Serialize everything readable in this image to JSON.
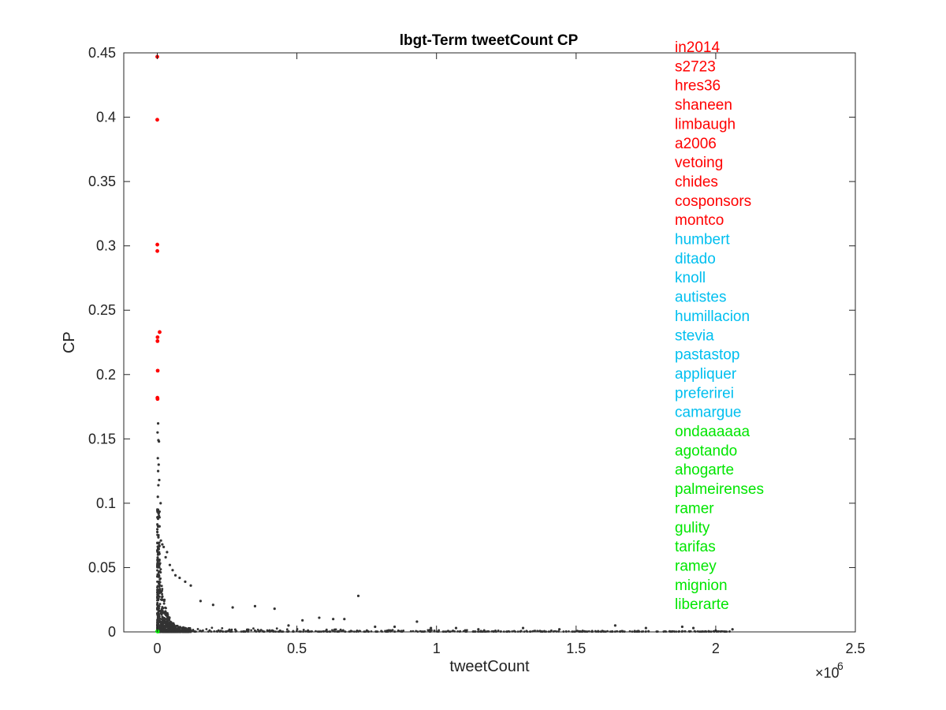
{
  "chart_data": {
    "type": "scatter",
    "title": "lbgt-Term tweetCount CP",
    "xlabel": "tweetCount",
    "ylabel": "CP",
    "x_exponent_label": "×10",
    "x_exponent_power": "6",
    "xlim": [
      -0.12,
      2.5
    ],
    "ylim": [
      0,
      0.45
    ],
    "x_scale_factor": 1000000,
    "x_ticks": [
      0,
      0.5,
      1,
      1.5,
      2,
      2.5
    ],
    "x_tick_labels": [
      "0",
      "0.5",
      "1",
      "1.5",
      "2",
      "2.5"
    ],
    "y_ticks": [
      0,
      0.05,
      0.1,
      0.15,
      0.2,
      0.25,
      0.3,
      0.35,
      0.4,
      0.45
    ],
    "y_tick_labels": [
      "0",
      "0.05",
      "0.1",
      "0.15",
      "0.2",
      "0.25",
      "0.3",
      "0.35",
      "0.4",
      "0.45"
    ],
    "grid": false,
    "colors": {
      "top": "#ff0000",
      "middle": "#00bfef",
      "bottom": "#00e600",
      "points": "#333333"
    },
    "series": [
      {
        "name": "top",
        "color": "#ff0000",
        "points": [
          [
            0,
            0.447
          ],
          [
            0,
            0.398
          ],
          [
            0.0002,
            0.301
          ],
          [
            0.0002,
            0.296
          ],
          [
            0.0085,
            0.233
          ],
          [
            0.001,
            0.229
          ],
          [
            0.0008,
            0.226
          ],
          [
            0.0015,
            0.203
          ],
          [
            0.0005,
            0.182
          ],
          [
            0.001,
            0.181
          ]
        ]
      },
      {
        "name": "bottom",
        "color": "#00e600",
        "points": [
          [
            0,
            0.0005
          ],
          [
            0.002,
            0.0003
          ]
        ]
      },
      {
        "name": "all",
        "color": "#333333",
        "points": [
          [
            0.003,
            0.162
          ],
          [
            0.001,
            0.155
          ],
          [
            0.004,
            0.149
          ],
          [
            0.006,
            0.148
          ],
          [
            0.002,
            0.135
          ],
          [
            0.005,
            0.13
          ],
          [
            0.003,
            0.125
          ],
          [
            0.007,
            0.118
          ],
          [
            0.004,
            0.114
          ],
          [
            0.002,
            0.105
          ],
          [
            0.012,
            0.1
          ],
          [
            0.003,
            0.095
          ],
          [
            0.006,
            0.09
          ],
          [
            0.008,
            0.082
          ],
          [
            0.013,
            0.071
          ],
          [
            0.018,
            0.068
          ],
          [
            0.023,
            0.066
          ],
          [
            0.035,
            0.062
          ],
          [
            0.03,
            0.058
          ],
          [
            0.045,
            0.052
          ],
          [
            0.055,
            0.048
          ],
          [
            0.065,
            0.044
          ],
          [
            0.08,
            0.042
          ],
          [
            0.1,
            0.039
          ],
          [
            0.12,
            0.036
          ],
          [
            0.155,
            0.024
          ],
          [
            0.2,
            0.021
          ],
          [
            0.27,
            0.019
          ],
          [
            0.35,
            0.02
          ],
          [
            0.42,
            0.018
          ],
          [
            0.72,
            0.028
          ],
          [
            0.58,
            0.011
          ],
          [
            0.63,
            0.01
          ],
          [
            0.67,
            0.01
          ],
          [
            0.93,
            0.008
          ],
          [
            0.52,
            0.009
          ],
          [
            0.47,
            0.005
          ],
          [
            0.78,
            0.004
          ],
          [
            0.85,
            0.004
          ],
          [
            0.98,
            0.003
          ],
          [
            1.07,
            0.003
          ],
          [
            1.15,
            0.002
          ],
          [
            1.31,
            0.003
          ],
          [
            1.44,
            0.002
          ],
          [
            1.64,
            0.005
          ],
          [
            1.75,
            0.003
          ],
          [
            1.88,
            0.004
          ],
          [
            1.92,
            0.003
          ],
          [
            2.06,
            0.002
          ],
          [
            2.0,
            0.001
          ]
        ]
      }
    ],
    "term_labels": [
      {
        "text": "in2014",
        "group": "top"
      },
      {
        "text": "s2723",
        "group": "top"
      },
      {
        "text": "hres36",
        "group": "top"
      },
      {
        "text": "shaneen",
        "group": "top"
      },
      {
        "text": "limbaugh",
        "group": "top"
      },
      {
        "text": "a2006",
        "group": "top"
      },
      {
        "text": "vetoing",
        "group": "top"
      },
      {
        "text": "chides",
        "group": "top"
      },
      {
        "text": "cosponsors",
        "group": "top"
      },
      {
        "text": "montco",
        "group": "top"
      },
      {
        "text": "humbert",
        "group": "middle"
      },
      {
        "text": "ditado",
        "group": "middle"
      },
      {
        "text": "knoll",
        "group": "middle"
      },
      {
        "text": "autistes",
        "group": "middle"
      },
      {
        "text": "humillacion",
        "group": "middle"
      },
      {
        "text": "stevia",
        "group": "middle"
      },
      {
        "text": "pastastop",
        "group": "middle"
      },
      {
        "text": "appliquer",
        "group": "middle"
      },
      {
        "text": "preferirei",
        "group": "middle"
      },
      {
        "text": "camargue",
        "group": "middle"
      },
      {
        "text": "ondaaaaaa",
        "group": "bottom"
      },
      {
        "text": "agotando",
        "group": "bottom"
      },
      {
        "text": "ahogarte",
        "group": "bottom"
      },
      {
        "text": "palmeirenses",
        "group": "bottom"
      },
      {
        "text": "ramer",
        "group": "bottom"
      },
      {
        "text": "gulity",
        "group": "bottom"
      },
      {
        "text": "tarifas",
        "group": "bottom"
      },
      {
        "text": "ramey",
        "group": "bottom"
      },
      {
        "text": "mignion",
        "group": "bottom"
      },
      {
        "text": "liberarte",
        "group": "bottom"
      }
    ]
  }
}
